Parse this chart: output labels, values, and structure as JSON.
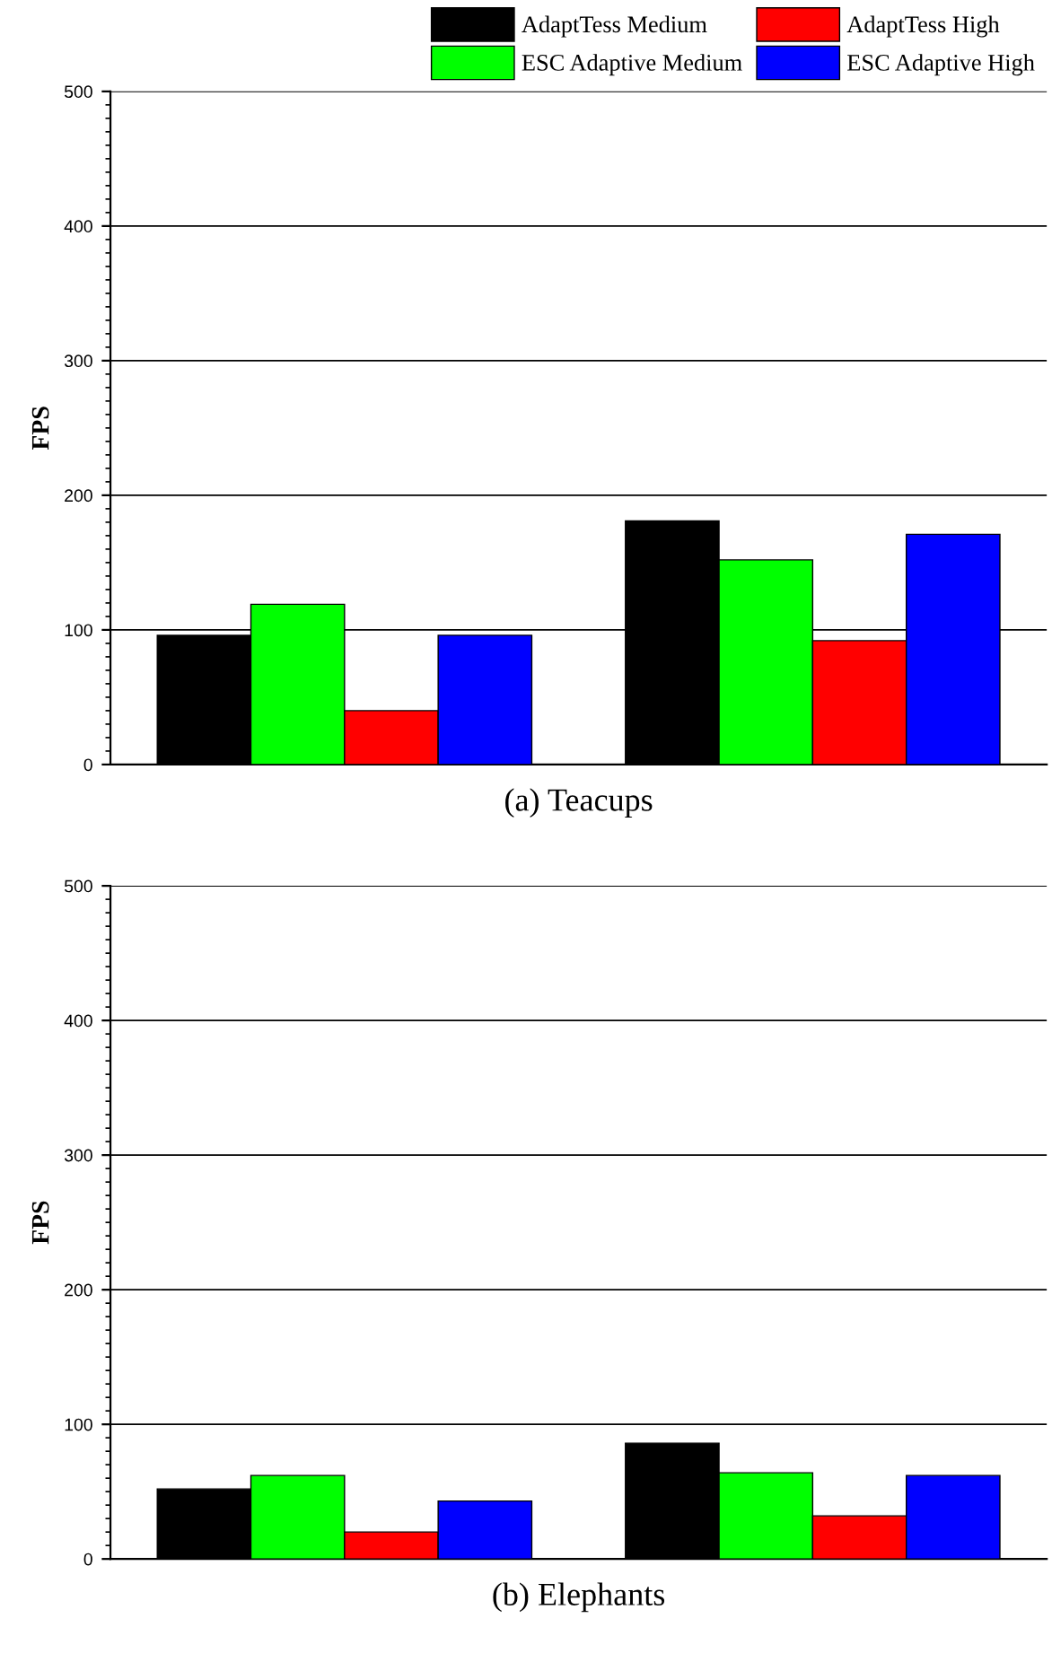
{
  "chart_data": [
    {
      "type": "bar",
      "xlabel": "(a) Teacups",
      "ylabel": "FPS",
      "categories": [
        null,
        null
      ],
      "ylim": [
        0,
        500
      ],
      "yticks": [
        0,
        100,
        200,
        300,
        400,
        500
      ],
      "grid": "y",
      "legend": "top right",
      "series": [
        {
          "name": "AdaptTess Medium",
          "color": "#000000",
          "values": [
            96,
            181
          ]
        },
        {
          "name": "ESC Adaptive Medium",
          "color": "#00ff00",
          "values": [
            119,
            152
          ]
        },
        {
          "name": "AdaptTess High",
          "color": "#ff0000",
          "values": [
            40,
            92
          ]
        },
        {
          "name": "ESC Adaptive High",
          "color": "#0000ff",
          "values": [
            96,
            171
          ]
        }
      ]
    },
    {
      "type": "bar",
      "xlabel": "(b) Elephants",
      "ylabel": "FPS",
      "categories": [
        null,
        null
      ],
      "ylim": [
        0,
        500
      ],
      "yticks": [
        0,
        100,
        200,
        300,
        400,
        500
      ],
      "grid": "y",
      "series": [
        {
          "color": "#000000",
          "values": [
            52,
            86
          ]
        },
        {
          "color": "#00ff00",
          "values": [
            62,
            64
          ]
        },
        {
          "color": "#ff0000",
          "values": [
            20,
            32
          ]
        },
        {
          "color": "#0000ff",
          "values": [
            43,
            62
          ]
        }
      ]
    }
  ]
}
